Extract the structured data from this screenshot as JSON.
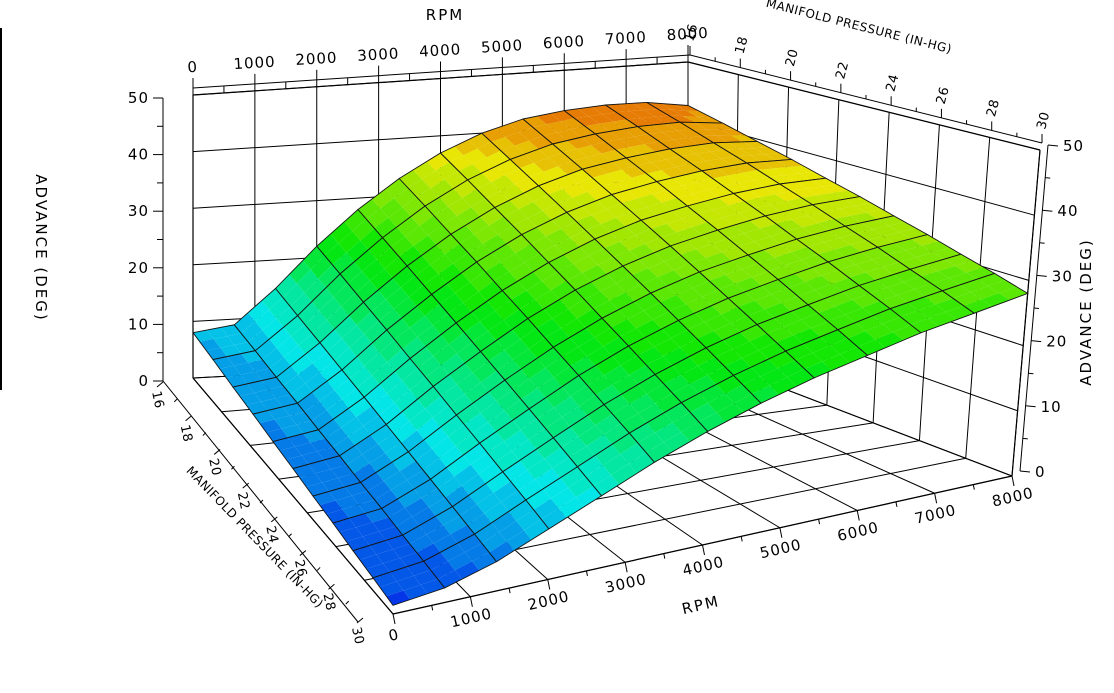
{
  "window": {
    "background": "#ffffff",
    "left_edge_artifact": true
  },
  "chart_data": {
    "type": "surface",
    "title": "",
    "axes": {
      "x": {
        "label": "RPM",
        "min": 0,
        "max": 8000,
        "major_ticks": [
          0,
          1000,
          2000,
          3000,
          4000,
          5000,
          6000,
          7000,
          8000
        ],
        "minor_step": 500
      },
      "y": {
        "label": "MANIFOLD PRESSURE (IN-HG)",
        "min": 16,
        "max": 30,
        "major_ticks": [
          16,
          18,
          20,
          22,
          24,
          26,
          28,
          30
        ],
        "minor_step": 1
      },
      "z": {
        "label": "ADVANCE (DEG)",
        "min": 0,
        "max": 50,
        "major_ticks": [
          0,
          10,
          20,
          30,
          40,
          50
        ],
        "minor_step": 5
      }
    },
    "surface": {
      "rpm_points": [
        0,
        667,
        1333,
        2000,
        2667,
        3333,
        4000,
        4667,
        5333,
        6000,
        6667,
        7333,
        8000
      ],
      "map_points": [
        16,
        17.4,
        18.8,
        20.2,
        21.6,
        23,
        24.4,
        25.8,
        27.2,
        28.6,
        30
      ],
      "advance": [
        [
          8,
          9,
          15,
          22,
          28,
          33,
          37,
          40,
          42,
          43,
          43.5,
          43.5,
          42.5
        ],
        [
          7.4,
          8.4,
          14,
          20.7,
          26.4,
          31.3,
          35.2,
          38.1,
          40.1,
          41.2,
          41.8,
          41.9,
          41.1
        ],
        [
          6.7,
          7.7,
          13,
          19.3,
          24.8,
          29.5,
          33.3,
          36.2,
          38.2,
          39.3,
          40,
          40.2,
          39.6
        ],
        [
          6.1,
          7.1,
          12,
          18,
          23.2,
          27.8,
          31.5,
          34.3,
          36.3,
          37.5,
          38.3,
          38.6,
          38.2
        ],
        [
          5.4,
          6.4,
          11,
          16.6,
          21.6,
          26,
          29.6,
          32.4,
          34.4,
          35.6,
          36.5,
          36.9,
          36.7
        ],
        [
          4.8,
          5.8,
          10,
          15.3,
          20,
          24.3,
          27.8,
          30.5,
          32.5,
          33.8,
          34.8,
          35.3,
          35.3
        ],
        [
          4.1,
          5.1,
          9,
          13.9,
          18.4,
          22.5,
          25.9,
          28.6,
          30.6,
          31.9,
          33,
          33.6,
          33.8
        ],
        [
          3.5,
          4.5,
          8,
          12.6,
          16.8,
          20.8,
          24.1,
          26.7,
          28.7,
          30.1,
          31.3,
          32,
          32.4
        ],
        [
          2.8,
          3.8,
          7,
          11.2,
          15.2,
          19,
          22.2,
          24.8,
          26.8,
          28.2,
          29.5,
          30.3,
          30.9
        ],
        [
          2.2,
          3.2,
          6,
          9.9,
          13.6,
          17.3,
          20.4,
          22.9,
          24.9,
          26.4,
          27.8,
          28.7,
          29.5
        ],
        [
          1.5,
          2.5,
          5,
          8.5,
          12,
          15.5,
          18.5,
          21,
          23,
          24.5,
          26,
          27,
          28
        ]
      ]
    },
    "style": {
      "band_size_deg": 2,
      "hue_start": 227,
      "hue_step_per_band": -9.3,
      "hue_min": 30,
      "saturation_pct": 97,
      "lightness_pct": 46,
      "mesh_color": "#151515",
      "grid_color": "#000000",
      "background": "#ffffff",
      "low_color_example": "#0a3df5",
      "high_color_example": "#f18804"
    }
  }
}
